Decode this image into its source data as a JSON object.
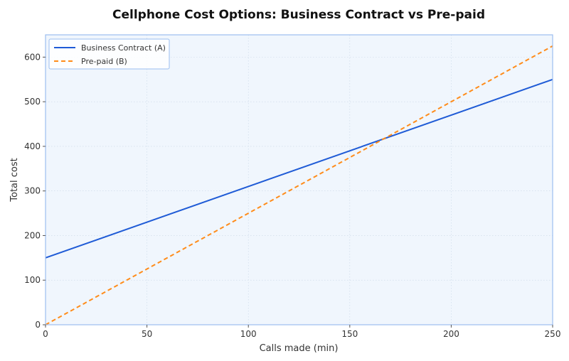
{
  "chart_data": {
    "type": "line",
    "title": "Cellphone Cost Options: Business Contract vs Pre-paid",
    "xlabel": "Calls made (min)",
    "ylabel": "Total cost",
    "xlim": [
      0,
      250
    ],
    "ylim": [
      0,
      650
    ],
    "x_ticks": [
      0,
      50,
      100,
      150,
      200,
      250
    ],
    "y_ticks": [
      0,
      100,
      200,
      300,
      400,
      500,
      600
    ],
    "grid": true,
    "legend_position": "top-left",
    "series": [
      {
        "name": "Business Contract (A)",
        "color": "#1f5bd6",
        "style": "solid",
        "x": [
          0,
          250
        ],
        "y": [
          150,
          550
        ]
      },
      {
        "name": "Pre-paid (B)",
        "color": "#ff8c1a",
        "style": "dashed",
        "x": [
          0,
          250
        ],
        "y": [
          0,
          625
        ]
      }
    ],
    "colors": {
      "plot_background": "#f0f6fd",
      "plot_border": "#9cbff0",
      "grid": "#c9d7e6"
    }
  }
}
